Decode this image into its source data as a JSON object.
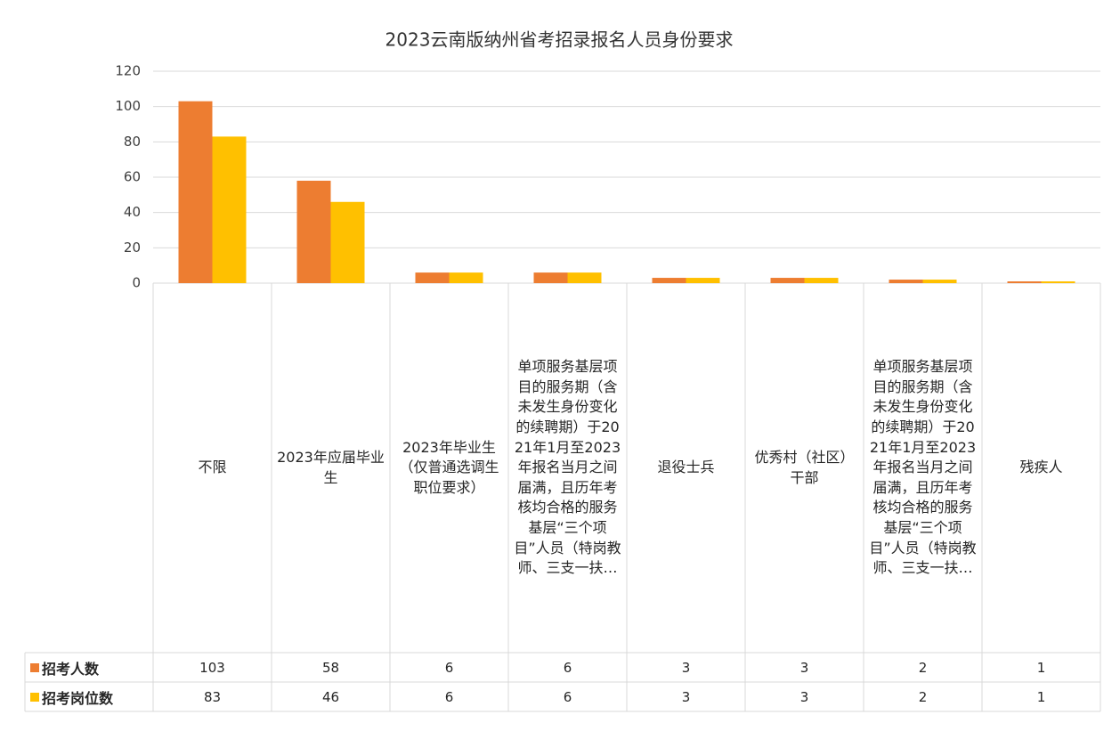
{
  "chart_data": {
    "type": "bar",
    "title": "2023云南版纳州省考招录报名人员身份要求",
    "categories": [
      "不限",
      "2023年应届毕业生",
      "2023年毕业生（仅普通选调生职位要求）",
      "单项服务基层项目的服务期（含未发生身份变化的续聘期）于2021年1月至2023年报名当月之间届满，且历年考核均合格的服务基层“三个项目”人员（特岗教师、三支一扶…",
      "退役士兵",
      "优秀村（社区）干部",
      "单项服务基层项目的服务期（含未发生身份变化的续聘期）于2021年1月至2023年报名当月之间届满，且历年考核均合格的服务基层“三个项目”人员（特岗教师、三支一扶…",
      "残疾人"
    ],
    "series": [
      {
        "name": "招考人数",
        "color": "#ED7D31",
        "values": [
          103,
          58,
          6,
          6,
          3,
          3,
          2,
          1
        ]
      },
      {
        "name": "招考岗位数",
        "color": "#FFC000",
        "values": [
          83,
          46,
          6,
          6,
          3,
          3,
          2,
          1
        ]
      }
    ],
    "ylim": [
      0,
      120
    ],
    "yticks": [
      0,
      20,
      40,
      60,
      80,
      100,
      120
    ],
    "grid": true
  }
}
